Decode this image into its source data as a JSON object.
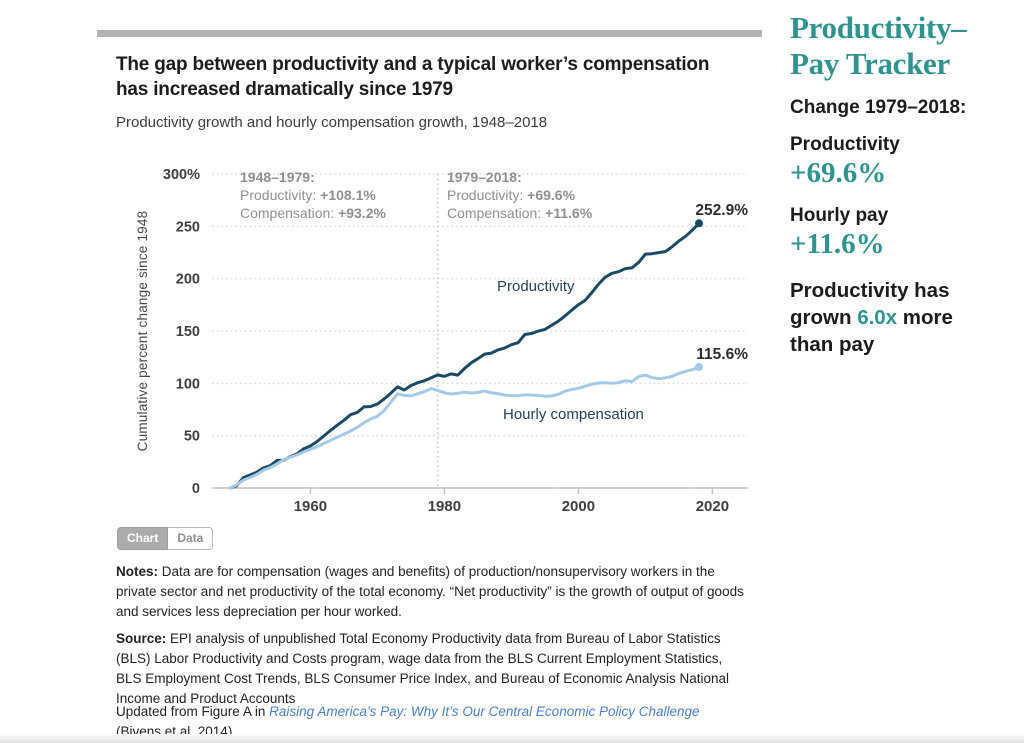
{
  "header": {
    "title": "The gap between productivity and a typical worker’s compensation has increased dramatically since 1979",
    "subtitle": "Productivity growth and hourly compensation growth, 1948–2018"
  },
  "chart_data": {
    "type": "line",
    "ylabel": "Cumulative percent change since 1948",
    "ylim": [
      0,
      300
    ],
    "grid": "dotted horizontal",
    "legend_position": "inline labels on lines",
    "yticks": [
      {
        "value": 0,
        "label": "0"
      },
      {
        "value": 50,
        "label": "50"
      },
      {
        "value": 100,
        "label": "100"
      },
      {
        "value": 150,
        "label": "150"
      },
      {
        "value": 200,
        "label": "200"
      },
      {
        "value": 250,
        "label": "250"
      },
      {
        "value": 300,
        "label": "300%"
      }
    ],
    "xticks": [
      {
        "value": 1960,
        "label": "1960"
      },
      {
        "value": 1980,
        "label": "1980"
      },
      {
        "value": 2000,
        "label": "2000"
      },
      {
        "value": 2020,
        "label": "2020"
      }
    ],
    "divider_year": 1979,
    "x": [
      1948,
      1949,
      1950,
      1951,
      1952,
      1953,
      1954,
      1955,
      1956,
      1957,
      1958,
      1959,
      1960,
      1961,
      1962,
      1963,
      1964,
      1965,
      1966,
      1967,
      1968,
      1969,
      1970,
      1971,
      1972,
      1973,
      1974,
      1975,
      1976,
      1977,
      1978,
      1979,
      1980,
      1981,
      1982,
      1983,
      1984,
      1985,
      1986,
      1987,
      1988,
      1989,
      1990,
      1991,
      1992,
      1993,
      1994,
      1995,
      1996,
      1997,
      1998,
      1999,
      2000,
      2001,
      2002,
      2003,
      2004,
      2005,
      2006,
      2007,
      2008,
      2009,
      2010,
      2011,
      2012,
      2013,
      2014,
      2015,
      2016,
      2017,
      2018
    ],
    "series": [
      {
        "name": "Productivity",
        "color": "#1b4a66",
        "values": [
          0.0,
          2.1,
          9.9,
          12.4,
          15.1,
          19.2,
          21.3,
          26.3,
          26.5,
          30.0,
          32.6,
          37.5,
          40.1,
          44.4,
          49.7,
          55.0,
          60.0,
          64.7,
          70.0,
          72.2,
          77.5,
          77.9,
          80.3,
          85.0,
          90.6,
          96.6,
          93.6,
          97.8,
          100.6,
          102.4,
          105.2,
          108.1,
          106.6,
          109.0,
          107.9,
          114.2,
          119.6,
          123.5,
          127.9,
          128.9,
          131.9,
          133.8,
          136.9,
          138.8,
          146.7,
          147.6,
          149.9,
          151.5,
          155.4,
          159.4,
          164.4,
          169.9,
          175.1,
          179.2,
          186.6,
          194.7,
          201.4,
          205.1,
          206.7,
          209.6,
          210.3,
          215.5,
          223.5,
          223.9,
          224.9,
          226.0,
          230.5,
          236.0,
          240.5,
          246.3,
          252.9
        ]
      },
      {
        "name": "Hourly compensation",
        "color": "#a5cae8",
        "values": [
          0.0,
          3.0,
          7.5,
          10.0,
          13.0,
          17.0,
          19.5,
          23.0,
          27.0,
          29.5,
          31.5,
          34.5,
          37.0,
          39.5,
          42.5,
          45.5,
          48.5,
          51.5,
          54.5,
          58.0,
          62.5,
          66.0,
          68.5,
          74.0,
          82.0,
          90.0,
          88.5,
          88.0,
          90.0,
          92.0,
          95.0,
          93.2,
          91.0,
          89.8,
          90.5,
          91.5,
          90.8,
          91.2,
          92.8,
          91.0,
          90.2,
          88.9,
          88.3,
          88.2,
          89.0,
          88.8,
          88.5,
          87.6,
          87.9,
          89.5,
          92.5,
          94.2,
          95.3,
          97.3,
          99.2,
          100.3,
          100.5,
          100.0,
          100.7,
          102.4,
          101.7,
          106.4,
          107.8,
          105.5,
          104.4,
          105.3,
          106.6,
          109.5,
          111.5,
          113.0,
          115.6
        ]
      }
    ],
    "end_labels": {
      "productivity": "252.9%",
      "compensation": "115.6%"
    },
    "annotations": [
      {
        "title": "1948–1979:",
        "lines": [
          {
            "label": "Productivity: ",
            "value": "+108.1%"
          },
          {
            "label": "Compensation: ",
            "value": "+93.2%"
          }
        ]
      },
      {
        "title": "1979–2018:",
        "lines": [
          {
            "label": "Productivity: ",
            "value": "+69.6%"
          },
          {
            "label": "Compensation: ",
            "value": "+11.6%"
          }
        ]
      }
    ]
  },
  "toggle": {
    "chart_label": "Chart",
    "data_label": "Data"
  },
  "notes": {
    "label": "Notes:",
    "text": "Data are for compensation (wages and benefits) of production/nonsupervisory workers in the private sector and net productivity of the total economy. “Net productivity” is the growth of output of goods and services less depreciation per hour worked."
  },
  "source": {
    "label": "Source:",
    "text": "EPI analysis of unpublished Total Economy Productivity data from Bureau of Labor Statistics (BLS) Labor Productivity and Costs program, wage data from the BLS Current Employment Statistics, BLS Employment Cost Trends, BLS Consumer Price Index, and Bureau of Economic Analysis National Income and Product Accounts",
    "updated_prefix": "Updated from Figure A in ",
    "updated_link": "Raising America’s Pay: Why It’s Our Central Economic Policy Challenge",
    "updated_suffix": " (Bivens et al. 2014)"
  },
  "sidebar": {
    "title": "Productivity–\nPay Tracker",
    "change_label": "Change 1979–2018:",
    "productivity_label": "Productivity",
    "productivity_value": "+69.6%",
    "hourly_label": "Hourly pay",
    "hourly_value": "+11.6%",
    "summary_before": "Productivity has grown ",
    "summary_multiplier": "6.0x",
    "summary_after": " more than pay",
    "accent_color": "#2f948f"
  }
}
